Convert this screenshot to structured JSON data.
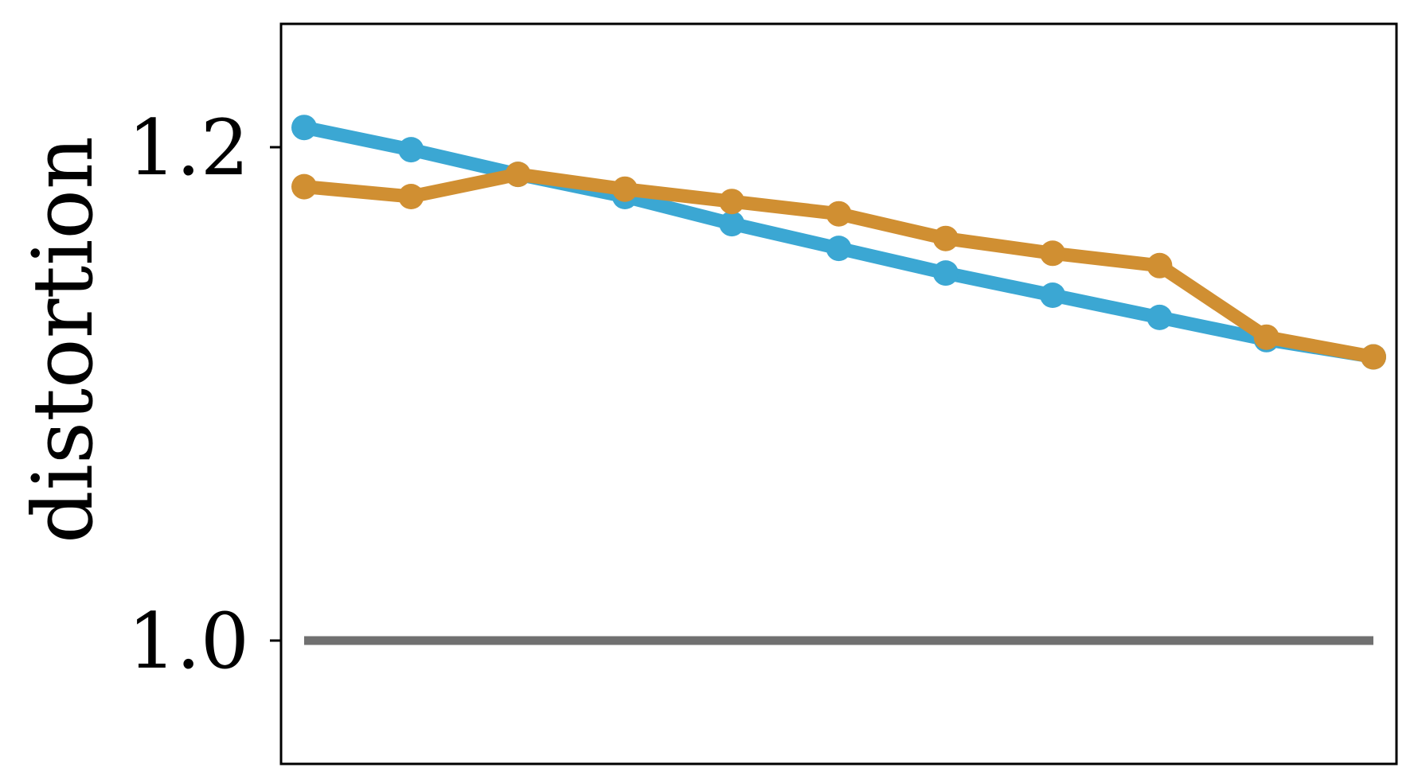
{
  "chart_data": {
    "type": "line",
    "title": "",
    "xlabel": "",
    "ylabel": "distortion",
    "x": [
      1,
      2,
      3,
      4,
      5,
      6,
      7,
      8,
      9,
      10,
      11
    ],
    "ylim": [
      0.95,
      1.25
    ],
    "yticks": [
      1.0,
      1.2
    ],
    "ytick_labels": [
      "1.0",
      "1.2"
    ],
    "xticks_visible": false,
    "grid": false,
    "legend": "none",
    "series": [
      {
        "color": "#3ba7d3",
        "marker": "circle",
        "values": [
          1.208,
          1.199,
          1.189,
          1.18,
          1.169,
          1.159,
          1.149,
          1.14,
          1.131,
          1.122,
          1.115
        ]
      },
      {
        "color": "#d08f32",
        "marker": "circle",
        "values": [
          1.184,
          1.18,
          1.189,
          1.183,
          1.178,
          1.173,
          1.163,
          1.157,
          1.152,
          1.123,
          1.115
        ]
      },
      {
        "color": "#707070",
        "marker": "none",
        "values": [
          1.0,
          1.0,
          1.0,
          1.0,
          1.0,
          1.0,
          1.0,
          1.0,
          1.0,
          1.0,
          1.0
        ]
      }
    ]
  }
}
